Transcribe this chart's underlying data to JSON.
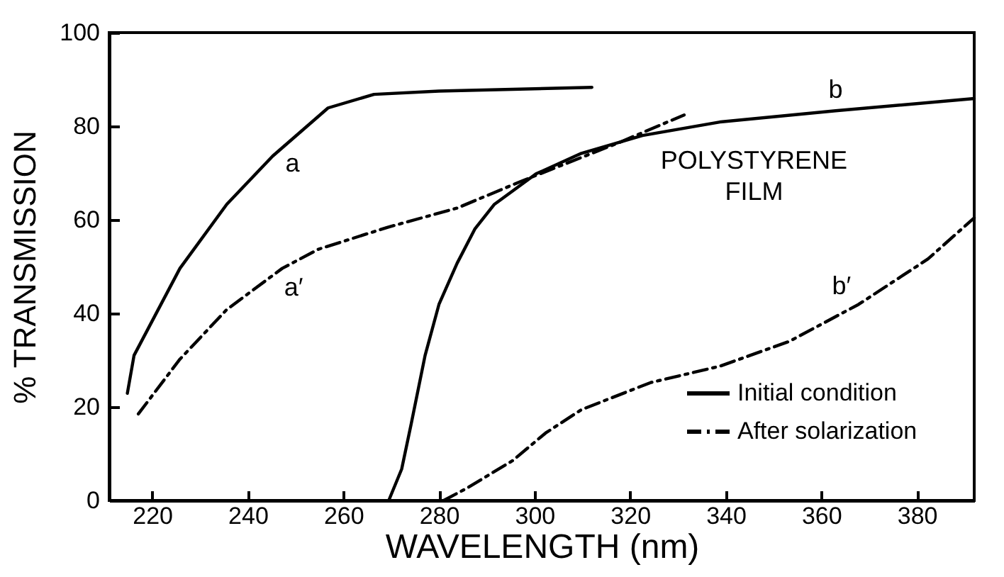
{
  "chart_data": {
    "type": "line",
    "xlabel": "WAVELENGTH (nm)",
    "ylabel": "% TRANSMISSION",
    "xlim": [
      211,
      392
    ],
    "ylim": [
      0,
      100
    ],
    "xticks": [
      220,
      240,
      260,
      280,
      300,
      320,
      340,
      360,
      380
    ],
    "yticks": [
      0,
      20,
      40,
      60,
      80,
      100
    ],
    "grid": false,
    "legend": "bottom right",
    "marker": "none",
    "series": [
      {
        "name": "Initial condition",
        "color": "#000000",
        "line_style": "solid",
        "x": [
          214.8,
          216.2,
          225.8,
          235.6,
          245.2,
          256.8,
          266.4,
          280,
          300,
          312
        ],
        "values": [
          22.9,
          31,
          49.6,
          63.3,
          73.6,
          83.9,
          86.8,
          87.5,
          88,
          88.3
        ]
      },
      {
        "name": "After solarization",
        "color": "#000000",
        "line_style": "dashed",
        "x": [
          217.1,
          225.8,
          235.6,
          247.2,
          254.8,
          269.3,
          283.8,
          297.4,
          317.7,
          331.3
        ],
        "values": [
          18.5,
          30.2,
          40.8,
          49.6,
          53.7,
          58.4,
          62.5,
          68.3,
          76.5,
          82.4
        ]
      },
      {
        "color": "#000000",
        "line_style": "solid",
        "x": [
          269.5,
          272.2,
          274.2,
          277.1,
          280,
          283.8,
          287.5,
          291.6,
          300.3,
          309.8,
          322.6,
          338.8,
          363,
          392
        ],
        "values": [
          0,
          6.7,
          16.4,
          31,
          41.9,
          50.7,
          58,
          63.3,
          69.8,
          74.2,
          78,
          80.9,
          83.3,
          85.9
        ]
      },
      {
        "color": "#000000",
        "line_style": "dashed",
        "x": [
          281,
          285.8,
          295.4,
          302.3,
          309.8,
          324.3,
          338.8,
          353.3,
          367.8,
          382.3,
          392
        ],
        "values": [
          0,
          2.6,
          8.5,
          14.4,
          19.4,
          25.2,
          28.7,
          34,
          41.9,
          51.6,
          60.4
        ]
      }
    ],
    "annotations": [
      {
        "text": "a",
        "x": 245.2,
        "y": 73.6
      },
      {
        "text": "a′",
        "x": 247.2,
        "y": 49.6
      },
      {
        "text": "b",
        "x": 363,
        "y": 83.3
      },
      {
        "text": "b′",
        "x": 367.8,
        "y": 41.9
      },
      {
        "text": "POLYSTYRENE FILM",
        "x": 338.8,
        "y": 80.9
      }
    ]
  }
}
